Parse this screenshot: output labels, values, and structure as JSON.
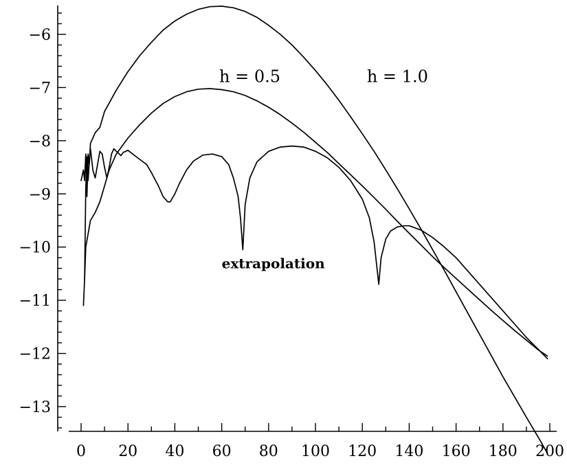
{
  "chart_data": {
    "type": "line",
    "title": "",
    "xlabel": "",
    "ylabel": "",
    "xlim": [
      0,
      200
    ],
    "ylim": [
      -13.4,
      -5.5
    ],
    "grid": false,
    "legend": "none",
    "x_ticks": [
      0,
      20,
      40,
      60,
      80,
      100,
      120,
      140,
      160,
      180,
      200
    ],
    "y_ticks": [
      -13,
      -12,
      -11,
      -10,
      -9,
      -8,
      -7,
      -6
    ],
    "x_tick_labels": [
      "0",
      "20",
      "40",
      "60",
      "80",
      "100",
      "120",
      "140",
      "160",
      "180",
      "200"
    ],
    "y_tick_labels": [
      "−13",
      "−12",
      "−11",
      "−10",
      "−9",
      "−8",
      "−7",
      "−6"
    ],
    "series": [
      {
        "points": [
          [
            0,
            -8.75
          ],
          [
            1,
            -8.55
          ],
          [
            1.5,
            -8.75
          ],
          [
            2,
            -8.25
          ],
          [
            2.5,
            -9.05
          ],
          [
            3,
            -8.25
          ],
          [
            3.5,
            -8.45
          ],
          [
            4,
            -8.05
          ],
          [
            5,
            -7.95
          ],
          [
            6,
            -7.85
          ],
          [
            8,
            -7.75
          ],
          [
            10,
            -7.45
          ],
          [
            15,
            -7.05
          ],
          [
            20,
            -6.7
          ],
          [
            25,
            -6.4
          ],
          [
            30,
            -6.15
          ],
          [
            35,
            -5.92
          ],
          [
            40,
            -5.75
          ],
          [
            45,
            -5.62
          ],
          [
            50,
            -5.53
          ],
          [
            55,
            -5.48
          ],
          [
            60,
            -5.47
          ],
          [
            65,
            -5.5
          ],
          [
            70,
            -5.57
          ],
          [
            75,
            -5.68
          ],
          [
            80,
            -5.83
          ],
          [
            85,
            -6.0
          ],
          [
            90,
            -6.2
          ],
          [
            95,
            -6.43
          ],
          [
            100,
            -6.68
          ],
          [
            105,
            -6.95
          ],
          [
            110,
            -7.24
          ],
          [
            115,
            -7.55
          ],
          [
            120,
            -7.87
          ],
          [
            125,
            -8.2
          ],
          [
            130,
            -8.55
          ],
          [
            135,
            -8.91
          ],
          [
            140,
            -9.28
          ],
          [
            145,
            -9.66
          ],
          [
            150,
            -10.05
          ],
          [
            155,
            -10.44
          ],
          [
            160,
            -10.84
          ],
          [
            165,
            -11.24
          ],
          [
            170,
            -11.64
          ],
          [
            175,
            -12.04
          ],
          [
            180,
            -12.44
          ],
          [
            185,
            -12.82
          ],
          [
            190,
            -13.2
          ],
          [
            195,
            -13.57
          ],
          [
            199,
            -13.88
          ]
        ]
      },
      {
        "points": [
          [
            1,
            -11.1
          ],
          [
            1.5,
            -10.6
          ],
          [
            2,
            -10.0
          ],
          [
            3,
            -9.75
          ],
          [
            4,
            -9.5
          ],
          [
            6,
            -9.35
          ],
          [
            8,
            -9.15
          ],
          [
            10,
            -8.85
          ],
          [
            12,
            -8.55
          ],
          [
            15,
            -8.25
          ],
          [
            20,
            -7.95
          ],
          [
            25,
            -7.7
          ],
          [
            30,
            -7.48
          ],
          [
            35,
            -7.3
          ],
          [
            40,
            -7.17
          ],
          [
            45,
            -7.08
          ],
          [
            50,
            -7.03
          ],
          [
            55,
            -7.02
          ],
          [
            60,
            -7.04
          ],
          [
            65,
            -7.08
          ],
          [
            70,
            -7.15
          ],
          [
            75,
            -7.25
          ],
          [
            80,
            -7.37
          ],
          [
            85,
            -7.51
          ],
          [
            90,
            -7.67
          ],
          [
            95,
            -7.84
          ],
          [
            100,
            -8.03
          ],
          [
            105,
            -8.22
          ],
          [
            110,
            -8.43
          ],
          [
            115,
            -8.64
          ],
          [
            120,
            -8.85
          ],
          [
            125,
            -9.07
          ],
          [
            130,
            -9.29
          ],
          [
            135,
            -9.52
          ],
          [
            140,
            -9.74
          ],
          [
            145,
            -9.96
          ],
          [
            150,
            -10.18
          ],
          [
            155,
            -10.39
          ],
          [
            160,
            -10.59
          ],
          [
            165,
            -10.79
          ],
          [
            170,
            -10.99
          ],
          [
            175,
            -11.19
          ],
          [
            180,
            -11.38
          ],
          [
            185,
            -11.57
          ],
          [
            190,
            -11.75
          ],
          [
            195,
            -11.93
          ],
          [
            199,
            -12.05
          ]
        ]
      },
      {
        "points": [
          [
            1.5,
            -10.6
          ],
          [
            2,
            -8.9
          ],
          [
            2.5,
            -8.3
          ],
          [
            3,
            -8.75
          ],
          [
            3.5,
            -8.4
          ],
          [
            4,
            -8.15
          ],
          [
            5,
            -8.55
          ],
          [
            6,
            -8.7
          ],
          [
            7,
            -8.45
          ],
          [
            8,
            -8.2
          ],
          [
            9,
            -8.25
          ],
          [
            10,
            -8.5
          ],
          [
            11,
            -8.7
          ],
          [
            12,
            -8.5
          ],
          [
            13,
            -8.25
          ],
          [
            14,
            -8.15
          ],
          [
            15,
            -8.2
          ],
          [
            17,
            -8.28
          ],
          [
            18,
            -8.22
          ],
          [
            20,
            -8.18
          ],
          [
            22,
            -8.25
          ],
          [
            25,
            -8.35
          ],
          [
            28,
            -8.45
          ],
          [
            30,
            -8.6
          ],
          [
            33,
            -8.85
          ],
          [
            35,
            -9.05
          ],
          [
            37,
            -9.15
          ],
          [
            38,
            -9.15
          ],
          [
            40,
            -9.0
          ],
          [
            42,
            -8.8
          ],
          [
            45,
            -8.55
          ],
          [
            48,
            -8.38
          ],
          [
            52,
            -8.27
          ],
          [
            56,
            -8.25
          ],
          [
            60,
            -8.3
          ],
          [
            63,
            -8.45
          ],
          [
            65,
            -8.7
          ],
          [
            67,
            -9.05
          ],
          [
            68,
            -9.45
          ],
          [
            69,
            -10.05
          ],
          [
            70,
            -9.2
          ],
          [
            72,
            -8.7
          ],
          [
            75,
            -8.4
          ],
          [
            80,
            -8.2
          ],
          [
            85,
            -8.12
          ],
          [
            90,
            -8.1
          ],
          [
            95,
            -8.12
          ],
          [
            100,
            -8.2
          ],
          [
            105,
            -8.32
          ],
          [
            110,
            -8.5
          ],
          [
            115,
            -8.75
          ],
          [
            120,
            -9.1
          ],
          [
            123,
            -9.45
          ],
          [
            125,
            -9.9
          ],
          [
            126,
            -10.3
          ],
          [
            127,
            -10.7
          ],
          [
            128,
            -10.2
          ],
          [
            130,
            -9.85
          ],
          [
            132,
            -9.7
          ],
          [
            135,
            -9.62
          ],
          [
            138,
            -9.6
          ],
          [
            140,
            -9.6
          ],
          [
            145,
            -9.68
          ],
          [
            150,
            -9.82
          ],
          [
            155,
            -10.0
          ],
          [
            160,
            -10.2
          ],
          [
            165,
            -10.45
          ],
          [
            170,
            -10.7
          ],
          [
            175,
            -10.95
          ],
          [
            180,
            -11.2
          ],
          [
            185,
            -11.45
          ],
          [
            190,
            -11.7
          ],
          [
            195,
            -11.92
          ],
          [
            199,
            -12.1
          ]
        ]
      }
    ],
    "annotations": [
      {
        "text": "h = 0.5",
        "x": 72,
        "y": -6.9
      },
      {
        "text": "h = 1.0",
        "x": 135,
        "y": -6.9
      },
      {
        "text": "extrapolation",
        "x": 82,
        "y": -10.4
      }
    ]
  }
}
